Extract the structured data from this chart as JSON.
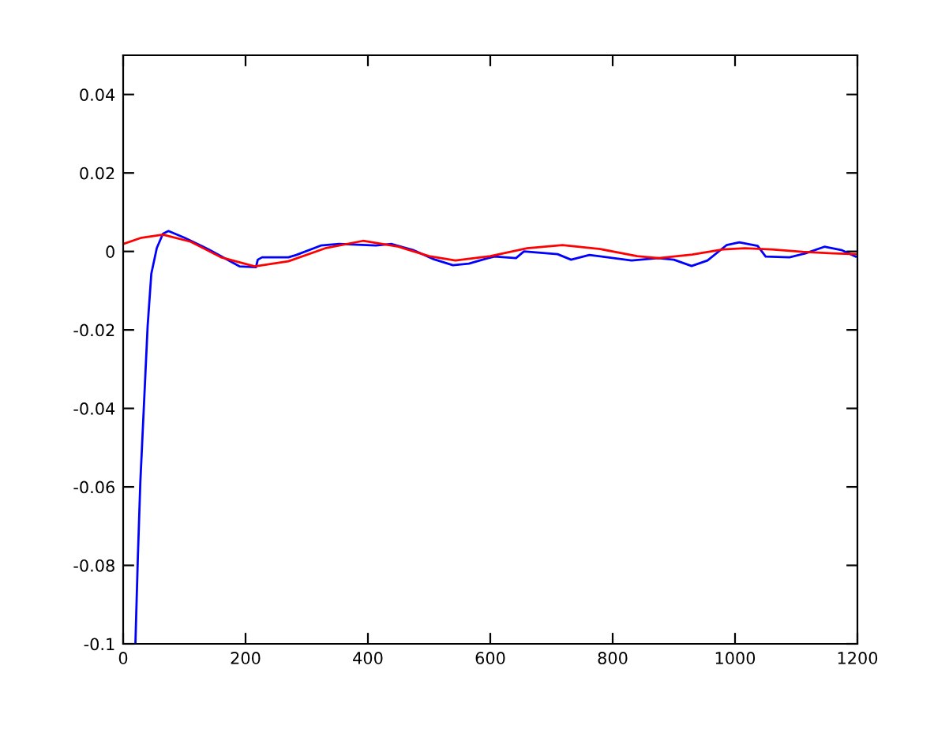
{
  "chart_data": {
    "type": "line",
    "series": [
      {
        "color": "#0000ff",
        "x": [
          20,
          24,
          28,
          34,
          40,
          46,
          55,
          65,
          74,
          100,
          140,
          190,
          217,
          220,
          227,
          270,
          283,
          323,
          353,
          413,
          439,
          475,
          508,
          539,
          565,
          594,
          607,
          642,
          655,
          710,
          732,
          762,
          831,
          874,
          900,
          929,
          955,
          986,
          1007,
          1037,
          1050,
          1089,
          1115,
          1146,
          1175,
          1197
        ],
        "values": [
          -0.1,
          -0.078,
          -0.059,
          -0.039,
          -0.019,
          -0.0057,
          0.0009,
          0.0045,
          0.0052,
          0.0035,
          0.0005,
          -0.0038,
          -0.004,
          -0.0021,
          -0.0015,
          -0.0015,
          -0.0009,
          0.0015,
          0.0019,
          0.0015,
          0.0019,
          0.0003,
          -0.002,
          -0.0035,
          -0.0031,
          -0.0018,
          -0.0013,
          -0.0017,
          0,
          -0.0007,
          -0.0021,
          -0.0009,
          -0.0023,
          -0.0017,
          -0.0021,
          -0.0037,
          -0.0023,
          0.0016,
          0.0023,
          0.0014,
          -0.0013,
          -0.0015,
          -0.0005,
          0.0012,
          0.0003,
          -0.0013
        ]
      },
      {
        "color": "#ff0000",
        "x": [
          0,
          30,
          65,
          110,
          160,
          215,
          270,
          330,
          392,
          450,
          500,
          543,
          600,
          660,
          718,
          780,
          840,
          875,
          930,
          980,
          1016,
          1060,
          1110,
          1160,
          1198
        ],
        "values": [
          0.0019,
          0.0035,
          0.0043,
          0.0025,
          -0.0015,
          -0.0038,
          -0.0025,
          0.0008,
          0.0027,
          0.0012,
          -0.0012,
          -0.0023,
          -0.0012,
          0.0008,
          0.0016,
          0.0006,
          -0.0012,
          -0.0017,
          -0.0008,
          0.0005,
          0.0008,
          0.0005,
          -0.0001,
          -0.0005,
          -0.0007
        ]
      }
    ],
    "xlim": [
      0,
      1200
    ],
    "xticks": [
      0,
      200,
      400,
      600,
      800,
      1000,
      1200
    ],
    "ylim": [
      -0.1,
      0.05
    ],
    "yticks": [
      -0.1,
      -0.08,
      -0.06,
      -0.04,
      -0.02,
      0,
      0.02,
      0.04
    ],
    "grid": false,
    "marker": "none",
    "line_style": "solid"
  }
}
